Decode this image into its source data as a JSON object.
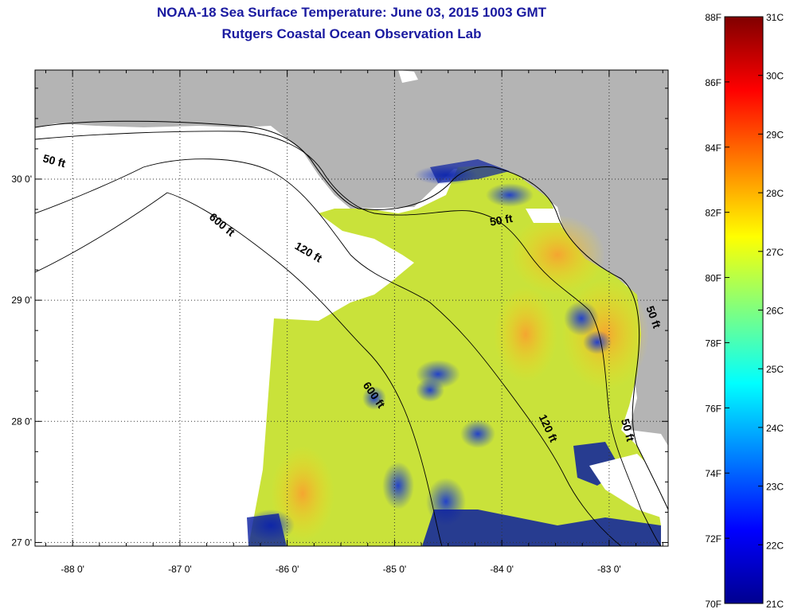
{
  "title": {
    "line1": "NOAA-18 Sea Surface Temperature:  June 03, 2015 1003 GMT",
    "line2": "Rutgers Coastal Ocean Observation Lab"
  },
  "map": {
    "lon_range": [
      -88.35,
      -82.45
    ],
    "lat_range": [
      26.97,
      30.9
    ],
    "lon_ticks": [
      {
        "value": -88,
        "label": "-88 0'"
      },
      {
        "value": -87,
        "label": "-87 0'"
      },
      {
        "value": -86,
        "label": "-86 0'"
      },
      {
        "value": -85,
        "label": "-85 0'"
      },
      {
        "value": -84,
        "label": "-84 0'"
      },
      {
        "value": -83,
        "label": "-83 0'"
      }
    ],
    "lat_ticks": [
      {
        "value": 30,
        "label": "30 0'"
      },
      {
        "value": 29,
        "label": "29 0'"
      },
      {
        "value": 28,
        "label": "28 0'"
      },
      {
        "value": 27,
        "label": "27 0'"
      }
    ],
    "grid": true,
    "land_color": "#b4b4b4",
    "nodata_color": "#ffffff",
    "isobaths": [
      {
        "label": "50 ft",
        "lon": -88.18,
        "lat": 30.12,
        "rotate": 15
      },
      {
        "label": "600 ft",
        "lon": -86.63,
        "lat": 29.6,
        "rotate": 40
      },
      {
        "label": "120 ft",
        "lon": -85.82,
        "lat": 29.37,
        "rotate": 30
      },
      {
        "label": "50 ft",
        "lon": -84.0,
        "lat": 29.63,
        "rotate": -10
      },
      {
        "label": "600 ft",
        "lon": -85.22,
        "lat": 28.2,
        "rotate": 55
      },
      {
        "label": "120 ft",
        "lon": -83.6,
        "lat": 27.93,
        "rotate": 65
      },
      {
        "label": "50 ft",
        "lon": -82.86,
        "lat": 27.92,
        "rotate": 75
      },
      {
        "label": "50 ft",
        "lon": -82.62,
        "lat": 28.85,
        "rotate": 70
      }
    ]
  },
  "colorbar": {
    "fahrenheit_labels": [
      "88F",
      "86F",
      "84F",
      "82F",
      "80F",
      "78F",
      "76F",
      "74F",
      "72F",
      "70F"
    ],
    "celsius_labels": [
      "31C",
      "30C",
      "29C",
      "28C",
      "27C",
      "26C",
      "25C",
      "24C",
      "23C",
      "22C",
      "21C"
    ],
    "range_f": [
      70,
      88
    ],
    "range_c": [
      21,
      31
    ]
  }
}
